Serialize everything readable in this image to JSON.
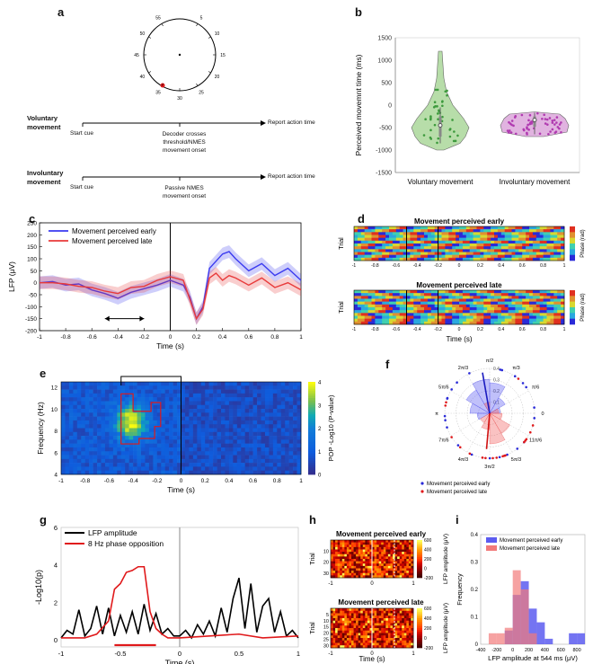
{
  "panel_labels": {
    "a": "a",
    "b": "b",
    "c": "c",
    "d": "d",
    "e": "e",
    "f": "f",
    "g": "g",
    "h": "h",
    "i": "i"
  },
  "panel_a": {
    "clock_ticks": [
      "55",
      "5",
      "10",
      "15",
      "20",
      "25",
      "30",
      "35",
      "40",
      "45",
      "50"
    ],
    "voluntary": {
      "row_label": "Voluntary movement",
      "start": "Start cue",
      "event": "Decoder crosses threshold/NMES movement onset",
      "end": "Report action time"
    },
    "involuntary": {
      "row_label": "Involuntary movement",
      "start": "Start cue",
      "event": "Passive NMES movement onset",
      "end": "Report action time"
    }
  },
  "panel_b": {
    "chart_data": {
      "type": "violin",
      "ylabel": "Perceived movemnt time (ms)",
      "categories": [
        "Voluntary movement",
        "Involuntary movement"
      ],
      "yticks": [
        "1500",
        "1000",
        "500",
        "0",
        "-500",
        "-1000",
        "-1500"
      ],
      "ylim": [
        -1500,
        1500
      ],
      "colors": [
        "#9fd18c",
        "#d79ad6"
      ],
      "medians": [
        -450,
        -330
      ]
    }
  },
  "panel_c": {
    "chart_data": {
      "type": "line",
      "xlabel": "Time (s)",
      "ylabel": "LFP (μV)",
      "xticks": [
        "-1",
        "-0.8",
        "-0.6",
        "-0.4",
        "-0.2",
        "0",
        "0.2",
        "0.4",
        "0.6",
        "0.8",
        "1"
      ],
      "yticks": [
        "250",
        "200",
        "150",
        "100",
        "50",
        "0",
        "-50",
        "-100",
        "-150",
        "-200"
      ],
      "xlim": [
        -1,
        1
      ],
      "ylim": [
        -200,
        250
      ],
      "series": [
        {
          "name": "Movement perceived early",
          "color": "#3a3af0",
          "x": [
            -1,
            -0.9,
            -0.8,
            -0.7,
            -0.6,
            -0.5,
            -0.4,
            -0.3,
            -0.2,
            -0.1,
            0,
            0.1,
            0.15,
            0.2,
            0.25,
            0.3,
            0.35,
            0.4,
            0.45,
            0.5,
            0.6,
            0.7,
            0.8,
            0.9,
            1
          ],
          "y": [
            0,
            5,
            -10,
            -5,
            -30,
            -45,
            -65,
            -40,
            -25,
            -10,
            10,
            -10,
            -60,
            -150,
            -100,
            60,
            90,
            120,
            130,
            100,
            50,
            80,
            30,
            60,
            10
          ]
        },
        {
          "name": "Movement perceived late",
          "color": "#e83a3a",
          "x": [
            -1,
            -0.9,
            -0.8,
            -0.7,
            -0.6,
            -0.5,
            -0.4,
            -0.3,
            -0.2,
            -0.1,
            0,
            0.1,
            0.15,
            0.2,
            0.25,
            0.3,
            0.35,
            0.4,
            0.45,
            0.5,
            0.6,
            0.7,
            0.8,
            0.9,
            1
          ],
          "y": [
            0,
            0,
            -5,
            -15,
            -20,
            -35,
            -45,
            -20,
            -15,
            10,
            25,
            10,
            -70,
            -150,
            -110,
            20,
            40,
            10,
            30,
            20,
            -10,
            20,
            -20,
            0,
            -30
          ]
        }
      ]
    }
  },
  "panel_d": {
    "top_title": "Movement perceived early",
    "bottom_title": "Movement perceived late",
    "ylabel": "Trial",
    "xlabel": "Time (s)",
    "cbar_label": "Phase (rad)",
    "xticks": [
      "-1",
      "-0.8",
      "-0.6",
      "-0.4",
      "-0.2",
      "0",
      "0.2",
      "0.4",
      "0.6",
      "0.8",
      "1"
    ]
  },
  "panel_e": {
    "chart_data": {
      "type": "heatmap",
      "xlabel": "Time (s)",
      "ylabel": "Frequency (Hz)",
      "cbar_label": "POP -Log10 (P-value)",
      "xticks": [
        "-1",
        "-0.8",
        "-0.6",
        "-0.4",
        "-0.2",
        "0",
        "0.2",
        "0.4",
        "0.6",
        "0.8",
        "1"
      ],
      "yticks": [
        "12",
        "10",
        "8",
        "6",
        "4"
      ],
      "cbar_ticks": [
        "4",
        "3",
        "2",
        "1",
        "0"
      ],
      "ylim": [
        4,
        12.5
      ],
      "zlim": [
        0,
        4
      ]
    }
  },
  "panel_f": {
    "chart_data": {
      "type": "polar",
      "angle_labels": [
        "π/2",
        "π/3",
        "π/6",
        "0",
        "11π/6",
        "5π/3",
        "3π/2",
        "4π/3",
        "7π/6",
        "π",
        "5π/6",
        "2π/3"
      ],
      "r_ticks": [
        "0.1",
        "0.2",
        "0.3",
        "0.4"
      ],
      "legend": [
        "Movement perceived early",
        "Movement perceived late"
      ]
    }
  },
  "panel_g": {
    "chart_data": {
      "type": "line",
      "xlabel": "Time (s)",
      "ylabel": "-Log10(p)",
      "xticks": [
        "-1",
        "-0.5",
        "0",
        "0.5",
        "1"
      ],
      "yticks": [
        "0",
        "2",
        "4",
        "6"
      ],
      "xlim": [
        -1,
        1
      ],
      "ylim": [
        0,
        6
      ],
      "series": [
        {
          "name": "LFP amplitude",
          "color": "#000000",
          "x": [
            -1,
            -0.95,
            -0.9,
            -0.85,
            -0.8,
            -0.75,
            -0.7,
            -0.65,
            -0.6,
            -0.55,
            -0.5,
            -0.45,
            -0.4,
            -0.35,
            -0.3,
            -0.25,
            -0.2,
            -0.15,
            -0.1,
            -0.05,
            0,
            0.05,
            0.1,
            0.15,
            0.2,
            0.25,
            0.3,
            0.35,
            0.4,
            0.45,
            0.5,
            0.55,
            0.6,
            0.65,
            0.7,
            0.75,
            0.8,
            0.85,
            0.9,
            0.95,
            1
          ],
          "y": [
            0.1,
            0.5,
            0.3,
            1.6,
            0.2,
            0.6,
            1.8,
            0.3,
            1.7,
            0.2,
            1.3,
            0.4,
            1.5,
            0.3,
            1.9,
            0.5,
            1.4,
            0.3,
            0.6,
            0.2,
            0.2,
            0.5,
            0.1,
            0.8,
            0.3,
            1.0,
            0.2,
            1.7,
            0.4,
            2.2,
            3.3,
            0.6,
            3.0,
            0.4,
            1.8,
            2.2,
            0.4,
            1.5,
            0.2,
            0.5,
            0.1
          ]
        },
        {
          "name": "8 Hz phase opposition",
          "color": "#e0191b",
          "x": [
            -1,
            -0.8,
            -0.7,
            -0.6,
            -0.55,
            -0.5,
            -0.45,
            -0.4,
            -0.35,
            -0.3,
            -0.25,
            -0.2,
            -0.15,
            -0.1,
            0,
            0.5,
            0.7,
            1
          ],
          "y": [
            0.1,
            0.1,
            0.3,
            1.0,
            2.7,
            3.0,
            3.6,
            3.7,
            3.9,
            3.9,
            1.5,
            0.6,
            0.3,
            0.1,
            0.1,
            0.3,
            0.1,
            0.2
          ]
        }
      ],
      "significance_bar": {
        "from": -0.55,
        "to": -0.2
      }
    }
  },
  "panel_h": {
    "top_title": "Movement perceived early",
    "bottom_title": "Movement perceived late",
    "ylabel": "Trial",
    "xlabel": "Time (s)",
    "cbar_label": "LFP amplitude (μV)",
    "cbar_ticks": [
      "600",
      "400",
      "200",
      "0",
      "-200"
    ],
    "xticks": [
      "-1",
      "0",
      "1"
    ],
    "top_yticks": [
      "10",
      "20",
      "30"
    ],
    "bottom_yticks": [
      "5",
      "10",
      "15",
      "20",
      "25",
      "30"
    ]
  },
  "panel_i": {
    "chart_data": {
      "type": "histogram",
      "xlabel": "LFP amplitude at 544 ms (μV)",
      "ylabel": "Frequency",
      "xticks": [
        "-400",
        "-200",
        "0",
        "200",
        "400",
        "600",
        "800"
      ],
      "yticks": [
        "0",
        "0.1",
        "0.2",
        "0.3",
        "0.4"
      ],
      "xlim": [
        -400,
        900
      ],
      "ylim": [
        0,
        0.4
      ],
      "bin_edges": [
        -300,
        -200,
        -100,
        0,
        100,
        200,
        300,
        400,
        500,
        600,
        700,
        800,
        900
      ],
      "series": [
        {
          "name": "Movement perceived early",
          "color": "#5c5cf0",
          "values": [
            0,
            0,
            0.05,
            0.18,
            0.23,
            0.13,
            0.08,
            0.02,
            0,
            0,
            0.04,
            0.04
          ]
        },
        {
          "name": "Movement perceived late",
          "color": "#f27a7a",
          "values": [
            0.04,
            0.04,
            0.06,
            0.27,
            0.2,
            0.04,
            0,
            0,
            0,
            0,
            0,
            0
          ]
        }
      ]
    }
  }
}
